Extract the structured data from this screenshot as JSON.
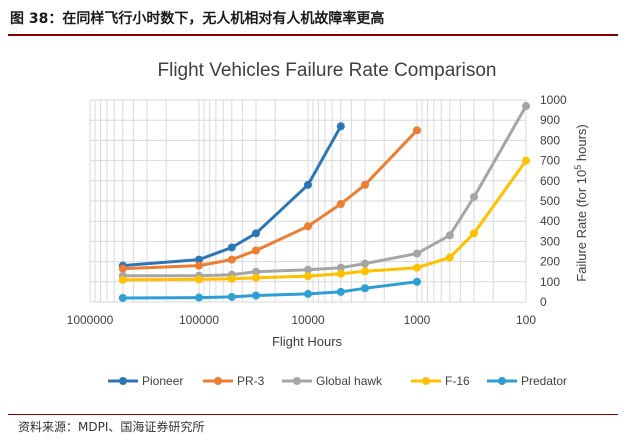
{
  "header": {
    "figure_caption": "图 38：在同样飞行小时数下，无人机相对有人机故障率更高"
  },
  "footer": {
    "source": "资料来源：MDPI、国海证券研究所"
  },
  "colors": {
    "Pioneer": "#2e75b6",
    "PR-3": "#ed7d31",
    "Global hawk": "#a5a5a5",
    "F-16": "#ffc000",
    "Predator": "#2e9fd4",
    "grid": "#d9d9d9",
    "axis_text": "#404040",
    "header_rule": "#8b0000"
  },
  "chart_data": {
    "type": "line",
    "title": "Flight Vehicles Failure Rate Comparison",
    "xlabel": "Flight Hours",
    "ylabel_prefix": "Failure Rate (for 10",
    "ylabel_sup": "5",
    "ylabel_suffix": " hours)",
    "xscale": "log-reversed",
    "xlim": [
      1000000,
      100
    ],
    "ylim": [
      0,
      1000
    ],
    "yticks": [
      0,
      100,
      200,
      300,
      400,
      500,
      600,
      700,
      800,
      900,
      1000
    ],
    "xticks": [
      {
        "value": 1000000,
        "label": "1000000"
      },
      {
        "value": 100000,
        "label": "100000"
      },
      {
        "value": 10000,
        "label": "10000"
      },
      {
        "value": 1000,
        "label": "1000"
      },
      {
        "value": 100,
        "label": "100"
      }
    ],
    "grid": true,
    "legend_position": "bottom",
    "series": [
      {
        "name": "Pioneer",
        "x": [
          500000,
          100000,
          50000,
          30000,
          10000,
          5000
        ],
        "y": [
          180,
          210,
          270,
          340,
          580,
          870
        ]
      },
      {
        "name": "PR-3",
        "x": [
          500000,
          100000,
          50000,
          30000,
          10000,
          5000,
          3000,
          1000
        ],
        "y": [
          165,
          180,
          210,
          255,
          375,
          485,
          580,
          850
        ]
      },
      {
        "name": "Global hawk",
        "x": [
          500000,
          100000,
          50000,
          30000,
          10000,
          5000,
          3000,
          1000,
          500,
          300,
          100
        ],
        "y": [
          130,
          130,
          135,
          150,
          160,
          170,
          190,
          240,
          330,
          520,
          970
        ]
      },
      {
        "name": "F-16",
        "x": [
          500000,
          100000,
          50000,
          30000,
          10000,
          5000,
          3000,
          1000,
          500,
          300,
          100
        ],
        "y": [
          110,
          112,
          115,
          120,
          128,
          140,
          152,
          170,
          220,
          340,
          700
        ]
      },
      {
        "name": "Predator",
        "x": [
          500000,
          100000,
          50000,
          30000,
          10000,
          5000,
          3000,
          1000
        ],
        "y": [
          20,
          22,
          25,
          32,
          40,
          50,
          68,
          100
        ]
      }
    ]
  }
}
